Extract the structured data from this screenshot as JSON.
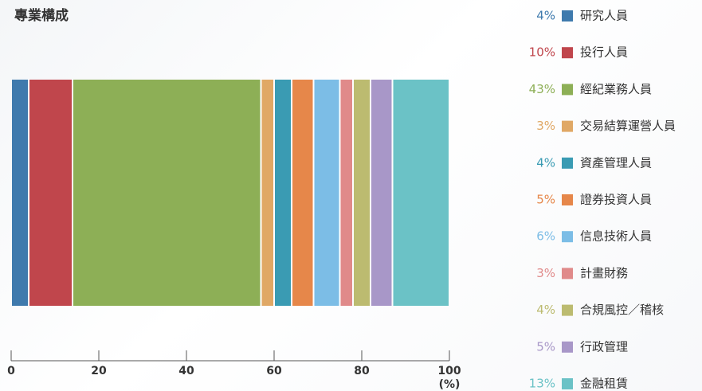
{
  "chart_data": {
    "type": "stacked-bar",
    "title": "專業構成",
    "series": [
      {
        "name": "研究人員",
        "color": "#3f7aad",
        "values": [
          4
        ],
        "value_labels": [
          "4%"
        ]
      },
      {
        "name": "投行人員",
        "color": "#c0464c",
        "values": [
          10
        ],
        "value_labels": [
          "10%"
        ]
      },
      {
        "name": "經紀業務人員",
        "color": "#8daf56",
        "values": [
          43
        ],
        "value_labels": [
          "43%"
        ]
      },
      {
        "name": "交易結算運營人員",
        "color": "#e0a865",
        "values": [
          3
        ],
        "value_labels": [
          "3%"
        ]
      },
      {
        "name": "資產管理人員",
        "color": "#3a9bb3",
        "values": [
          4
        ],
        "value_labels": [
          "4%"
        ]
      },
      {
        "name": "證券投資人員",
        "color": "#e6874a",
        "values": [
          5
        ],
        "value_labels": [
          "5%"
        ]
      },
      {
        "name": "信息技術人員",
        "color": "#7cbde6",
        "values": [
          6
        ],
        "value_labels": [
          "6%"
        ]
      },
      {
        "name": "計畫財務",
        "color": "#e08a8a",
        "values": [
          3
        ],
        "value_labels": [
          "3%"
        ]
      },
      {
        "name": "合規風控／稽核",
        "color": "#bcbb70",
        "values": [
          4
        ],
        "value_labels": [
          "4%"
        ]
      },
      {
        "name": "行政管理",
        "color": "#a897c8",
        "values": [
          5
        ],
        "value_labels": [
          "5%"
        ]
      },
      {
        "name": "金融租賃",
        "color": "#6bc2c6",
        "values": [
          13
        ],
        "value_labels": [
          "13%"
        ]
      }
    ],
    "xlim": [
      0,
      100
    ],
    "xticks": [
      0,
      20,
      40,
      60,
      80,
      100
    ],
    "xlabel": "(%)"
  }
}
